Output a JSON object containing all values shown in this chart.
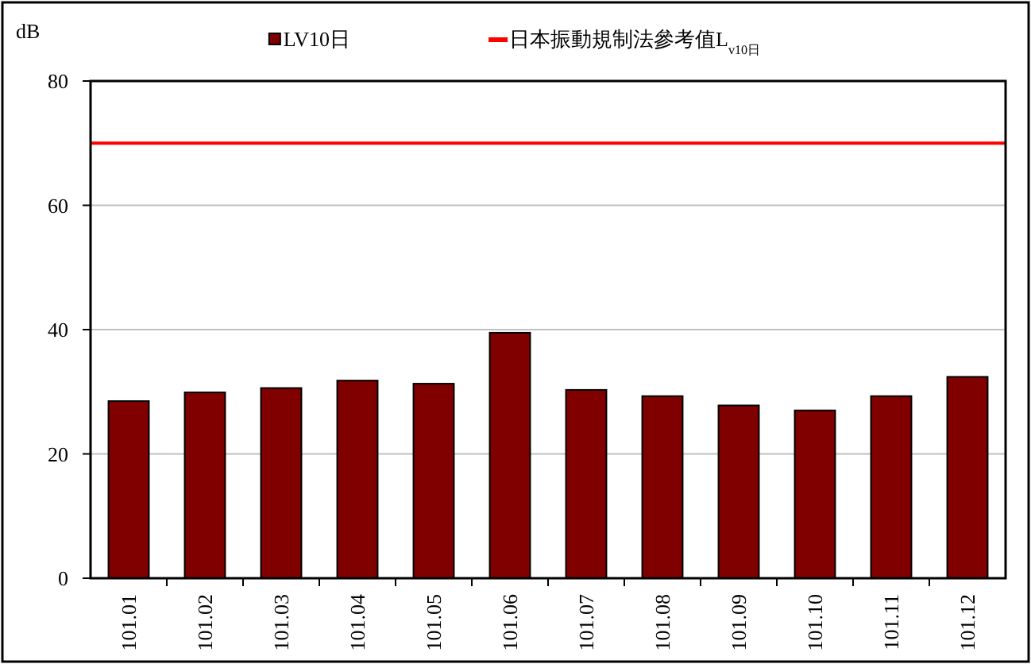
{
  "chart_data": {
    "type": "bar",
    "ylabel": "dB",
    "categories": [
      "101.01",
      "101.02",
      "101.03",
      "101.04",
      "101.05",
      "101.06",
      "101.07",
      "101.08",
      "101.09",
      "101.10",
      "101.11",
      "101.12"
    ],
    "series": [
      {
        "name": "LV10日",
        "color": "#800000",
        "values": [
          28.5,
          29.9,
          30.6,
          31.8,
          31.3,
          39.5,
          30.3,
          29.3,
          27.8,
          27.0,
          29.3,
          32.4
        ]
      }
    ],
    "ylim": [
      0,
      80
    ],
    "yticks": [
      0,
      20,
      40,
      60,
      80
    ],
    "grid": "y",
    "legend": "top",
    "ref_lines": [
      {
        "axis": "y",
        "value": 70,
        "label": "日本振動規制法參考值L$_{v10日}$",
        "color": "#ff0000"
      }
    ]
  }
}
